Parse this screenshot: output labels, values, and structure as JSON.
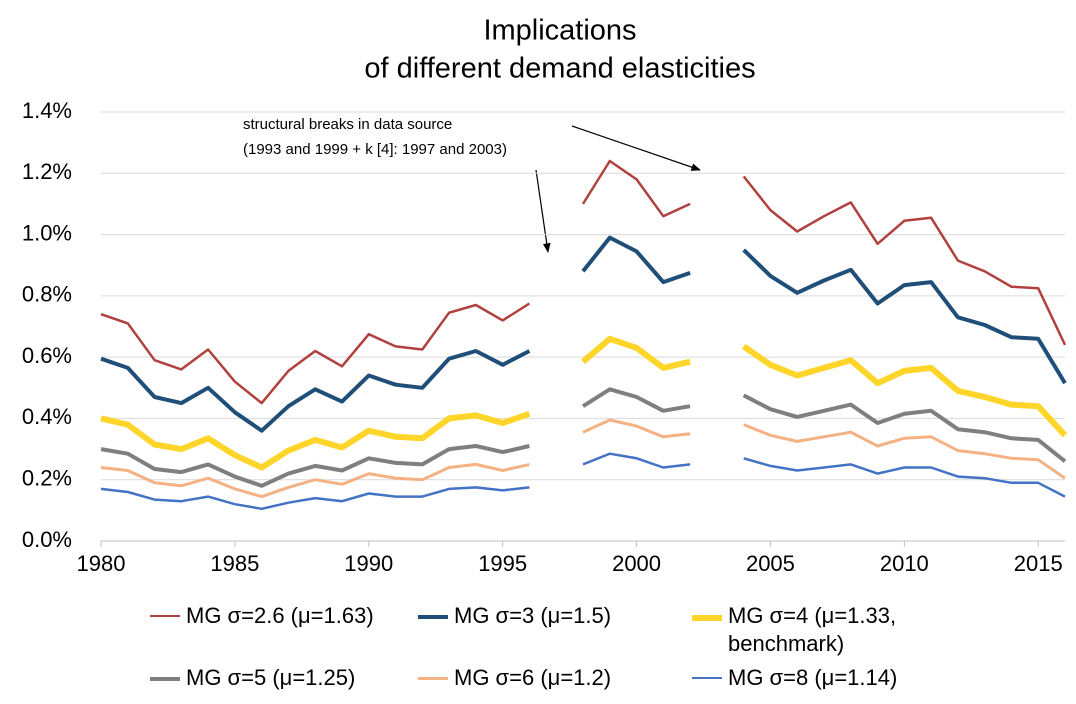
{
  "chart_data": {
    "type": "line",
    "title": [
      "Implications",
      "of different demand elasticities"
    ],
    "annotation": [
      "structural breaks in data source",
      "(1993 and 1999 + k [4]: 1997 and 2003)"
    ],
    "x": [
      1980,
      1981,
      1982,
      1983,
      1984,
      1985,
      1986,
      1987,
      1988,
      1989,
      1990,
      1991,
      1992,
      1993,
      1994,
      1995,
      1996,
      1997,
      1998,
      1999,
      2000,
      2001,
      2002,
      2003,
      2004,
      2005,
      2006,
      2007,
      2008,
      2009,
      2010,
      2011,
      2012,
      2013,
      2014,
      2015,
      2016
    ],
    "xlim": [
      1980,
      2016
    ],
    "xticks": [
      1980,
      1985,
      1990,
      1995,
      2000,
      2005,
      2010,
      2015
    ],
    "ylim": [
      0,
      1.4
    ],
    "yticks": [
      {
        "value": 0,
        "label": "0.0%"
      },
      {
        "value": 0.2,
        "label": "0.2%"
      },
      {
        "value": 0.4,
        "label": "0.4%"
      },
      {
        "value": 0.6,
        "label": "0.6%"
      },
      {
        "value": 0.8,
        "label": "0.8%"
      },
      {
        "value": 1.0,
        "label": "1.0%"
      },
      {
        "value": 1.2,
        "label": "1.2%"
      },
      {
        "value": 1.4,
        "label": "1.4%"
      }
    ],
    "grid": true,
    "series": [
      {
        "name": "MG σ=2.6 (μ=1.63)",
        "color": "#b0413e",
        "width": 2.5,
        "values": [
          0.74,
          0.71,
          0.59,
          0.56,
          0.625,
          0.52,
          0.45,
          0.555,
          0.62,
          0.57,
          0.675,
          0.635,
          0.625,
          0.745,
          0.77,
          0.72,
          0.775,
          null,
          1.1,
          1.24,
          1.18,
          1.06,
          1.1,
          null,
          1.19,
          1.08,
          1.01,
          1.06,
          1.105,
          0.97,
          1.045,
          1.055,
          0.915,
          0.88,
          0.83,
          0.825,
          0.64
        ]
      },
      {
        "name": "MG σ=3 (μ=1.5)",
        "color": "#1f4e79",
        "width": 4,
        "values": [
          0.595,
          0.565,
          0.47,
          0.45,
          0.5,
          0.42,
          0.36,
          0.44,
          0.495,
          0.455,
          0.54,
          0.51,
          0.5,
          0.595,
          0.62,
          0.575,
          0.62,
          null,
          0.88,
          0.99,
          0.945,
          0.845,
          0.875,
          null,
          0.95,
          0.865,
          0.81,
          0.85,
          0.885,
          0.775,
          0.835,
          0.845,
          0.73,
          0.705,
          0.665,
          0.66,
          0.515
        ]
      },
      {
        "name": "MG σ=4 (μ=1.33, benchmark)",
        "color": "#ffd52a",
        "width": 6,
        "values": [
          0.4,
          0.38,
          0.315,
          0.3,
          0.335,
          0.28,
          0.24,
          0.295,
          0.33,
          0.305,
          0.36,
          0.34,
          0.335,
          0.4,
          0.41,
          0.385,
          0.415,
          null,
          0.585,
          0.66,
          0.63,
          0.565,
          0.585,
          null,
          0.635,
          0.575,
          0.54,
          0.565,
          0.59,
          0.515,
          0.555,
          0.565,
          0.49,
          0.47,
          0.445,
          0.44,
          0.345
        ]
      },
      {
        "name": "MG σ=5 (μ=1.25)",
        "color": "#7f7f7f",
        "width": 4,
        "values": [
          0.3,
          0.285,
          0.235,
          0.225,
          0.25,
          0.21,
          0.18,
          0.22,
          0.245,
          0.23,
          0.27,
          0.255,
          0.25,
          0.3,
          0.31,
          0.29,
          0.31,
          null,
          0.44,
          0.495,
          0.47,
          0.425,
          0.44,
          null,
          0.475,
          0.43,
          0.405,
          0.425,
          0.445,
          0.385,
          0.415,
          0.425,
          0.365,
          0.355,
          0.335,
          0.33,
          0.26
        ]
      },
      {
        "name": "MG σ=6 (μ=1.2)",
        "color": "#f4b183",
        "width": 3,
        "values": [
          0.24,
          0.23,
          0.19,
          0.18,
          0.205,
          0.17,
          0.145,
          0.175,
          0.2,
          0.185,
          0.22,
          0.205,
          0.2,
          0.24,
          0.25,
          0.23,
          0.25,
          null,
          0.355,
          0.395,
          0.375,
          0.34,
          0.35,
          null,
          0.38,
          0.345,
          0.325,
          0.34,
          0.355,
          0.31,
          0.335,
          0.34,
          0.295,
          0.285,
          0.27,
          0.265,
          0.205
        ]
      },
      {
        "name": "MG σ=8 (μ=1.14)",
        "color": "#4472c4",
        "width": 2.5,
        "values": [
          0.17,
          0.16,
          0.135,
          0.13,
          0.145,
          0.12,
          0.105,
          0.125,
          0.14,
          0.13,
          0.155,
          0.145,
          0.145,
          0.17,
          0.175,
          0.165,
          0.175,
          null,
          0.25,
          0.285,
          0.27,
          0.24,
          0.25,
          null,
          0.27,
          0.245,
          0.23,
          0.24,
          0.25,
          0.22,
          0.24,
          0.24,
          0.21,
          0.205,
          0.19,
          0.19,
          0.145
        ]
      }
    ]
  }
}
